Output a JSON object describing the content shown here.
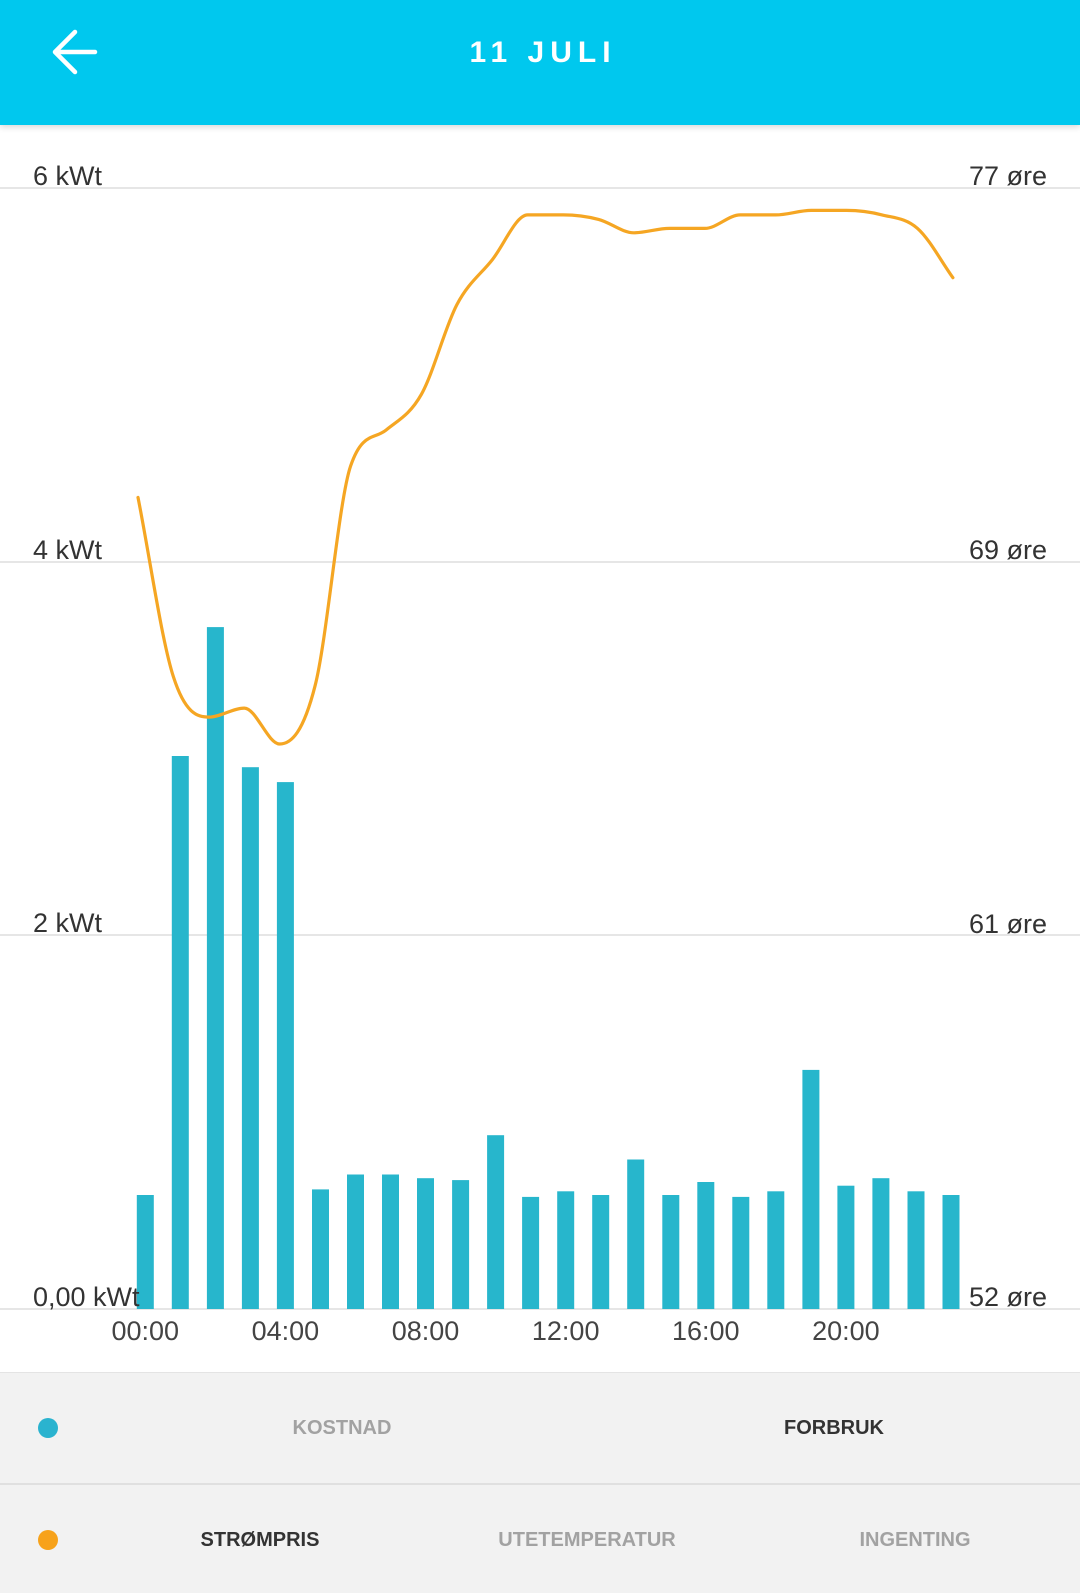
{
  "header": {
    "title": "11 JULI",
    "back_icon": "arrow-left-icon",
    "background_color": "#00C8EE"
  },
  "chart_data": {
    "type": "bar",
    "x": [
      0,
      1,
      2,
      3,
      4,
      5,
      6,
      7,
      8,
      9,
      10,
      11,
      12,
      13,
      14,
      15,
      16,
      17,
      18,
      19,
      20,
      21,
      22,
      23
    ],
    "x_ticks": [
      0,
      4,
      8,
      12,
      16,
      20
    ],
    "x_tick_labels": [
      "00:00",
      "04:00",
      "08:00",
      "12:00",
      "16:00",
      "20:00"
    ],
    "y_left": {
      "range": [
        0,
        6
      ],
      "ticks": [
        0,
        2,
        4,
        6
      ],
      "tick_labels": [
        "0,00 kWt",
        "2 kWt",
        "4 kWt",
        "6 kWt"
      ]
    },
    "y_right": {
      "range": [
        52.4,
        77.4
      ],
      "ticks": [
        52.4,
        60.73,
        69.07,
        77.4
      ],
      "tick_labels": [
        "52 øre",
        "61 øre",
        "69 øre",
        "77 øre"
      ]
    },
    "grid": true,
    "series": [
      {
        "name": "FORBRUK",
        "type": "bar",
        "y_axis": "left",
        "color": "#27B6CC",
        "values": [
          0.61,
          2.96,
          3.65,
          2.9,
          2.82,
          0.64,
          0.72,
          0.72,
          0.7,
          0.69,
          0.93,
          0.6,
          0.63,
          0.61,
          0.8,
          0.61,
          0.68,
          0.6,
          0.63,
          1.28,
          0.66,
          0.7,
          0.63,
          0.61
        ]
      },
      {
        "name": "STRØMPRIS",
        "type": "line",
        "y_axis": "right",
        "color": "#F5A623",
        "values": [
          70.5,
          66.5,
          65.6,
          65.8,
          65.0,
          66.3,
          71.2,
          72.0,
          72.8,
          74.8,
          75.8,
          76.8,
          76.8,
          76.7,
          76.4,
          76.5,
          76.5,
          76.8,
          76.8,
          76.9,
          76.9,
          76.8,
          76.5,
          75.4
        ]
      }
    ]
  },
  "legend": {
    "bar_row": {
      "dot_color": "#2AB3CF",
      "other_option": "KOSTNAD"
    },
    "line_row": {
      "dot_color": "#F7A21A",
      "other_options": [
        "UTETEMPERATUR",
        "INGENTING"
      ]
    }
  }
}
